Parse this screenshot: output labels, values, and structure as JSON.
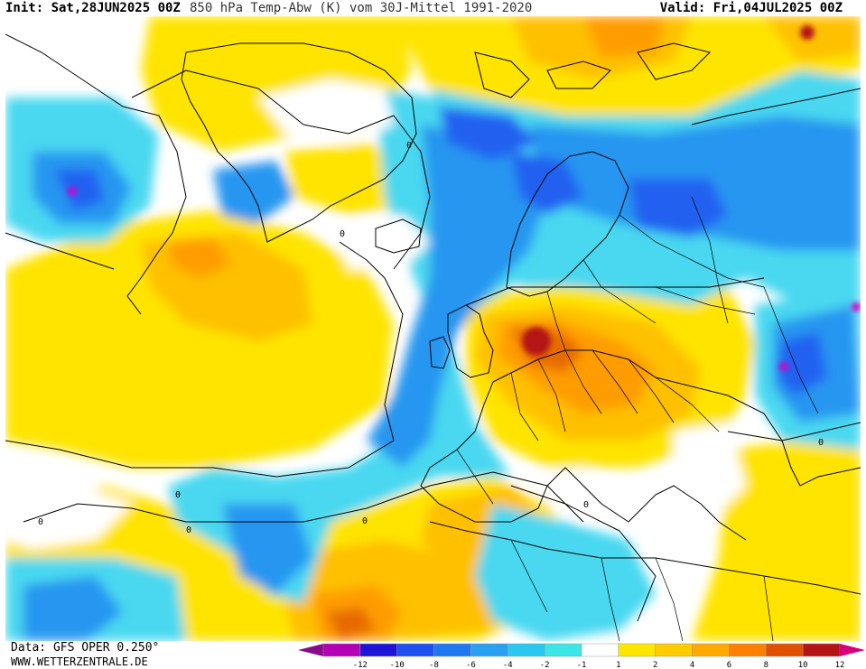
{
  "header": {
    "init": "Init: Sat,28JUN2025 00Z",
    "parameter": "850 hPa Temp-Abw (K) vom 30J-Mittel 1991-2020",
    "valid": "Valid: Fri,04JUL2025 00Z"
  },
  "footer": {
    "data_source": "Data: GFS OPER 0.250°",
    "website": "WWW.WETTERZENTRALE.DE"
  },
  "map": {
    "region": "North Atlantic, Greenland and Europe",
    "contour_label": "0",
    "colors": {
      "extreme_low": "#8a0a8a",
      "strong_low": "#d400c8",
      "cold_deep": "#1428d8",
      "cold_mid": "#2060f0",
      "cold": "#2896f0",
      "cool": "#1cc0f0",
      "cool_light": "#4ad8f0",
      "neutral": "#ffffff",
      "warm_light": "#ffe400",
      "warm": "#ffc000",
      "warm_mid": "#ff9c00",
      "hot": "#e66a00",
      "hot_deep": "#b41414",
      "extreme_high": "#d8007a"
    }
  },
  "legend": {
    "labels": [
      "-12",
      "-10",
      "-8",
      "-6",
      "-4",
      "-2",
      "-1",
      "1",
      "2",
      "4",
      "6",
      "8",
      "10",
      "12"
    ],
    "colors": [
      "#b400b4",
      "#1e14d8",
      "#1e50f0",
      "#1e78f0",
      "#2aa0f0",
      "#28c8f0",
      "#3ce6e6",
      "#ffffff",
      "#ffe600",
      "#ffcc00",
      "#ffaa00",
      "#ff8000",
      "#e05000",
      "#b41414"
    ],
    "low_arrow_color": "#8a0a8a",
    "high_arrow_color": "#d8007a"
  }
}
